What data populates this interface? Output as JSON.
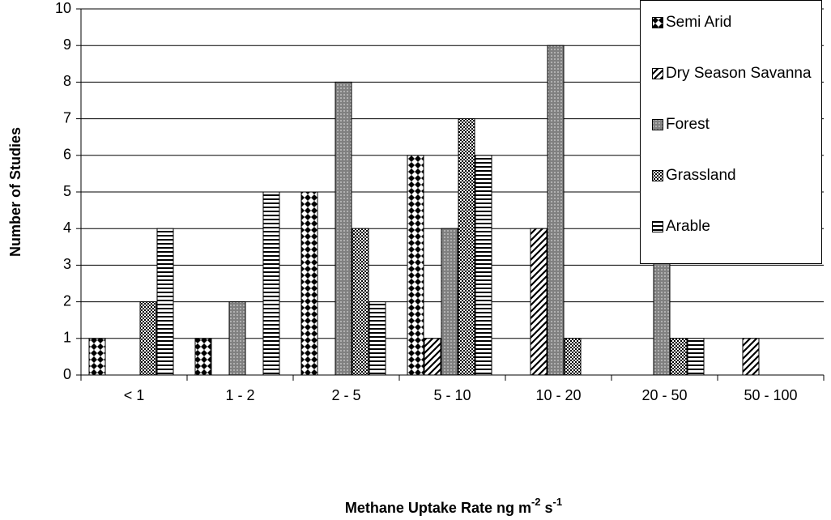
{
  "chart_data": {
    "type": "bar",
    "x_label_parts": [
      "Methane Uptake Rate ng m",
      "-2",
      " s",
      "-1"
    ],
    "y_label": "Number of Studies",
    "categories": [
      "< 1",
      "1 - 2",
      "2 - 5",
      "5 - 10",
      "10 - 20",
      "20 - 50",
      "50 - 100"
    ],
    "series": [
      {
        "name": "Semi Arid",
        "color": "#000000",
        "pattern": "diamonds",
        "values": [
          1,
          1,
          5,
          6,
          0,
          0,
          0
        ]
      },
      {
        "name": "Dry Season Savanna",
        "color": "#000000",
        "pattern": "diagonal",
        "values": [
          0,
          0,
          0,
          1,
          4,
          0,
          1
        ]
      },
      {
        "name": "Forest",
        "color": "#808080",
        "pattern": "fine",
        "values": [
          0,
          2,
          8,
          4,
          9,
          4,
          0
        ]
      },
      {
        "name": "Grassland",
        "color": "#000000",
        "pattern": "checker",
        "values": [
          2,
          0,
          4,
          7,
          1,
          1,
          0
        ]
      },
      {
        "name": "Arable",
        "color": "#000000",
        "pattern": "horizontal",
        "values": [
          4,
          5,
          2,
          6,
          0,
          1,
          0
        ]
      }
    ],
    "ylim": [
      0,
      10
    ],
    "yticks": [
      0,
      1,
      2,
      3,
      4,
      5,
      6,
      7,
      8,
      9,
      10
    ],
    "grid": true,
    "legend": "top-right"
  }
}
